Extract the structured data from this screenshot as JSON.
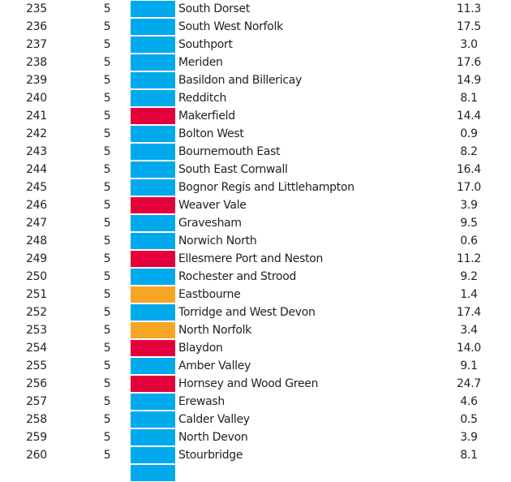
{
  "colors": {
    "blue": "#00A9EB",
    "red": "#E4003B",
    "orange": "#F6A623"
  },
  "rows": [
    {
      "rank": "235",
      "count": "5",
      "party_color": "blue",
      "name": "South Dorset",
      "value": "11.3"
    },
    {
      "rank": "236",
      "count": "5",
      "party_color": "blue",
      "name": "South West Norfolk",
      "value": "17.5"
    },
    {
      "rank": "237",
      "count": "5",
      "party_color": "blue",
      "name": "Southport",
      "value": "3.0"
    },
    {
      "rank": "238",
      "count": "5",
      "party_color": "blue",
      "name": "Meriden",
      "value": "17.6"
    },
    {
      "rank": "239",
      "count": "5",
      "party_color": "blue",
      "name": "Basildon and Billericay",
      "value": "14.9"
    },
    {
      "rank": "240",
      "count": "5",
      "party_color": "blue",
      "name": "Redditch",
      "value": "8.1"
    },
    {
      "rank": "241",
      "count": "5",
      "party_color": "red",
      "name": "Makerfield",
      "value": "14.4"
    },
    {
      "rank": "242",
      "count": "5",
      "party_color": "blue",
      "name": "Bolton West",
      "value": "0.9"
    },
    {
      "rank": "243",
      "count": "5",
      "party_color": "blue",
      "name": "Bournemouth East",
      "value": "8.2"
    },
    {
      "rank": "244",
      "count": "5",
      "party_color": "blue",
      "name": "South East Cornwall",
      "value": "16.4"
    },
    {
      "rank": "245",
      "count": "5",
      "party_color": "blue",
      "name": "Bognor Regis and Littlehampton",
      "value": "17.0"
    },
    {
      "rank": "246",
      "count": "5",
      "party_color": "red",
      "name": "Weaver Vale",
      "value": "3.9"
    },
    {
      "rank": "247",
      "count": "5",
      "party_color": "blue",
      "name": "Gravesham",
      "value": "9.5"
    },
    {
      "rank": "248",
      "count": "5",
      "party_color": "blue",
      "name": "Norwich North",
      "value": "0.6"
    },
    {
      "rank": "249",
      "count": "5",
      "party_color": "red",
      "name": "Ellesmere Port and Neston",
      "value": "11.2"
    },
    {
      "rank": "250",
      "count": "5",
      "party_color": "blue",
      "name": "Rochester and Strood",
      "value": "9.2"
    },
    {
      "rank": "251",
      "count": "5",
      "party_color": "orange",
      "name": "Eastbourne",
      "value": "1.4"
    },
    {
      "rank": "252",
      "count": "5",
      "party_color": "blue",
      "name": "Torridge and West Devon",
      "value": "17.4"
    },
    {
      "rank": "253",
      "count": "5",
      "party_color": "orange",
      "name": "North Norfolk",
      "value": "3.4"
    },
    {
      "rank": "254",
      "count": "5",
      "party_color": "red",
      "name": "Blaydon",
      "value": "14.0"
    },
    {
      "rank": "255",
      "count": "5",
      "party_color": "blue",
      "name": "Amber Valley",
      "value": "9.1"
    },
    {
      "rank": "256",
      "count": "5",
      "party_color": "red",
      "name": "Hornsey and Wood Green",
      "value": "24.7"
    },
    {
      "rank": "257",
      "count": "5",
      "party_color": "blue",
      "name": "Erewash",
      "value": "4.6"
    },
    {
      "rank": "258",
      "count": "5",
      "party_color": "blue",
      "name": "Calder Valley",
      "value": "0.5"
    },
    {
      "rank": "259",
      "count": "5",
      "party_color": "blue",
      "name": "North Devon",
      "value": "3.9"
    },
    {
      "rank": "260",
      "count": "5",
      "party_color": "blue",
      "name": "Stourbridge",
      "value": "8.1"
    },
    {
      "rank": "",
      "count": "",
      "party_color": "blue",
      "name": "",
      "value": ""
    }
  ]
}
